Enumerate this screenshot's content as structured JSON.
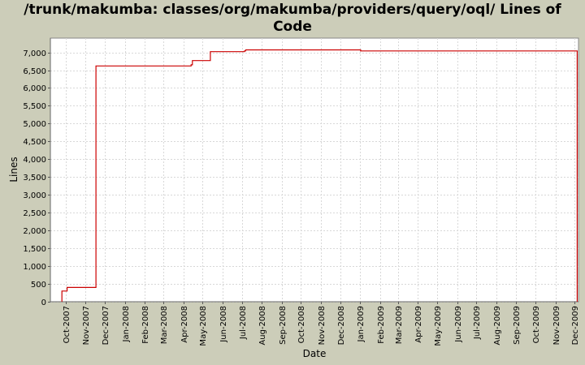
{
  "chart_data": {
    "type": "line",
    "title": "/trunk/makumba: classes/org/makumba/providers/query/oql/ Lines of Code",
    "title_lines": [
      "/trunk/makumba: classes/org/makumba/providers/query/oql/ Lines of",
      "Code"
    ],
    "xlabel": "Date",
    "ylabel": "Lines",
    "ylim": [
      0,
      7400
    ],
    "xlim": [
      "2007-09-07",
      "2009-12-07"
    ],
    "grid": true,
    "legend": "none",
    "line_color": "#cc0000",
    "plot_background": "#ffffff",
    "grid_color": "#d8d8d8",
    "y_ticks": [
      0,
      500,
      1000,
      1500,
      2000,
      2500,
      3000,
      3500,
      4000,
      4500,
      5000,
      5500,
      6000,
      6500,
      7000
    ],
    "y_tick_labels": [
      "0",
      "500",
      "1,000",
      "1,500",
      "2,000",
      "2,500",
      "3,000",
      "3,500",
      "4,000",
      "4,500",
      "5,000",
      "5,500",
      "6,000",
      "6,500",
      "7,000"
    ],
    "x_ticks": [
      "2007-10-01",
      "2007-11-01",
      "2007-12-01",
      "2008-01-01",
      "2008-02-01",
      "2008-03-01",
      "2008-04-01",
      "2008-05-01",
      "2008-06-01",
      "2008-07-01",
      "2008-08-01",
      "2008-09-01",
      "2008-10-01",
      "2008-11-01",
      "2008-12-01",
      "2009-01-01",
      "2009-02-01",
      "2009-03-01",
      "2009-04-01",
      "2009-05-01",
      "2009-06-01",
      "2009-07-01",
      "2009-08-01",
      "2009-09-01",
      "2009-10-01",
      "2009-11-01",
      "2009-12-01"
    ],
    "x_tick_labels": [
      "Oct-2007",
      "Nov-2007",
      "Dec-2007",
      "Jan-2008",
      "Feb-2008",
      "Mar-2008",
      "Apr-2008",
      "May-2008",
      "Jun-2008",
      "Jul-2008",
      "Aug-2008",
      "Sep-2008",
      "Oct-2008",
      "Nov-2008",
      "Dec-2008",
      "Jan-2009",
      "Feb-2009",
      "Mar-2009",
      "Apr-2009",
      "May-2009",
      "Jun-2009",
      "Jul-2009",
      "Aug-2009",
      "Sep-2009",
      "Oct-2009",
      "Nov-2009",
      "Dec-2009"
    ],
    "series": [
      {
        "step": true,
        "x": [
          "2007-09-25",
          "2007-10-01",
          "2007-10-03",
          "2007-11-17",
          "2008-04-12",
          "2008-04-13",
          "2008-04-15",
          "2008-05-13",
          "2008-07-03",
          "2008-07-05",
          "2008-07-07",
          "2009-01-02",
          "2009-12-05",
          "2009-12-05"
        ],
        "y": [
          300,
          300,
          400,
          6620,
          6620,
          6650,
          6770,
          7020,
          7020,
          7040,
          7070,
          7040,
          7040,
          0
        ]
      }
    ]
  }
}
